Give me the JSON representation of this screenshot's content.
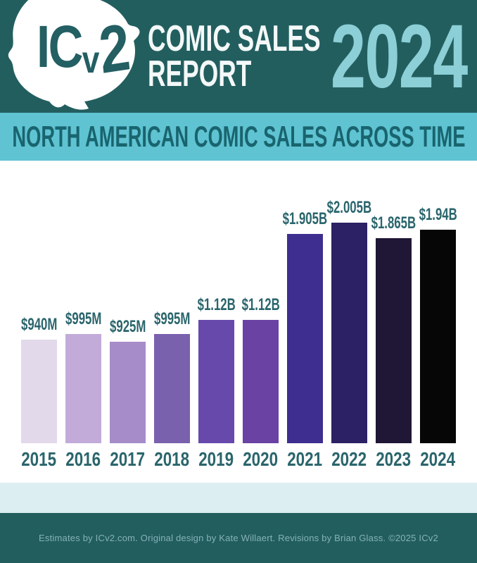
{
  "header": {
    "logo": {
      "ic": "IC",
      "v": "v",
      "two": "2"
    },
    "title_line1": "COMIC SALES",
    "title_line2": "REPORT",
    "year": "2024"
  },
  "banner": {
    "title": "NORTH AMERICAN COMIC SALES ACROSS TIME"
  },
  "chart_data": {
    "type": "bar",
    "title": "NORTH AMERICAN COMIC SALES ACROSS TIME",
    "categories": [
      "2015",
      "2016",
      "2017",
      "2018",
      "2019",
      "2020",
      "2021",
      "2022",
      "2023",
      "2024"
    ],
    "values_millions_usd": [
      940,
      995,
      925,
      995,
      1120,
      1120,
      1905,
      2005,
      1865,
      1940
    ],
    "value_labels": [
      "$940M",
      "$995M",
      "$925M",
      "$995M",
      "$1.12B",
      "$1.12B",
      "$1.905B",
      "$2.005B",
      "$1.865B",
      "$1.94B"
    ],
    "bar_colors": [
      "#e2d9ea",
      "#c2abd9",
      "#a68cc9",
      "#7a61ae",
      "#6749ac",
      "#6a42a4",
      "#3e2e90",
      "#2b2164",
      "#201737",
      "#070607"
    ],
    "xlabel": "",
    "ylabel": "",
    "ylim_millions": [
      0,
      2100
    ],
    "grid": false,
    "legend": false
  },
  "footer": {
    "credits": "Estimates by ICv2.com. Original design by Kate Willaert. Revisions by Brian Glass. ©2025 ICv2"
  },
  "colors": {
    "header_bg": "#235e5f",
    "banner_bg": "#5fc3d2",
    "banner_text": "#19646e",
    "year_text": "#8ccfd6",
    "logo_text": "#235f63",
    "title_text": "#f4f8f8",
    "label_teal": "#2a656c",
    "chart_bg": "#ffffff",
    "light_band": "#dceef2",
    "footer_bg": "#235e5f",
    "footer_text": "#84b1b6"
  }
}
